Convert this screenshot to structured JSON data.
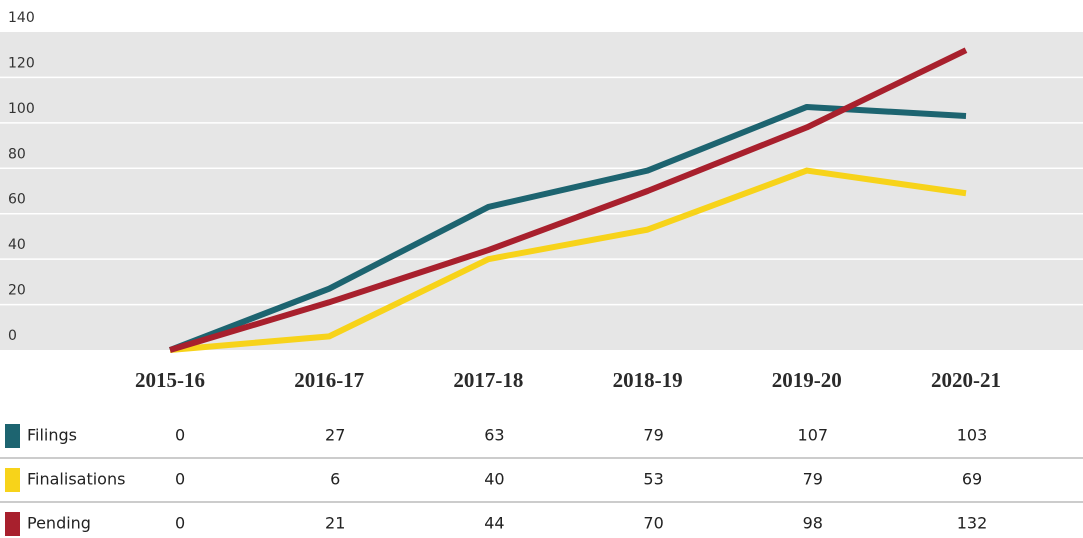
{
  "chart_data": {
    "type": "line",
    "categories": [
      "2015-16",
      "2016-17",
      "2017-18",
      "2018-19",
      "2019-20",
      "2020-21"
    ],
    "series": [
      {
        "name": "Filings",
        "color": "#1d6470",
        "values": [
          0,
          27,
          63,
          79,
          107,
          103
        ]
      },
      {
        "name": "Finalisations",
        "color": "#f7d31a",
        "values": [
          0,
          6,
          40,
          53,
          79,
          69
        ]
      },
      {
        "name": "Pending",
        "color": "#a8202d",
        "values": [
          0,
          21,
          44,
          70,
          98,
          132
        ]
      }
    ],
    "ylim": [
      0,
      140
    ],
    "yticks": [
      0,
      20,
      40,
      60,
      80,
      100,
      120,
      140
    ],
    "grid": true
  }
}
